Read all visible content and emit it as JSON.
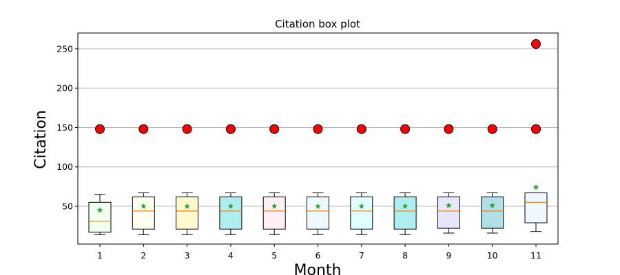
{
  "chart_data": {
    "type": "boxplot",
    "title": "Citation box plot",
    "xlabel": "Month",
    "ylabel": "Citation",
    "ylim": [
      2,
      270
    ],
    "yticks": [
      50,
      100,
      150,
      200,
      250
    ],
    "grid": "y",
    "categories": [
      "1",
      "2",
      "3",
      "4",
      "5",
      "6",
      "7",
      "8",
      "9",
      "10",
      "11"
    ],
    "boxes": [
      {
        "label": "1",
        "whisker_low": 14,
        "q1": 17,
        "median": 31,
        "q3": 55,
        "whisker_high": 65,
        "mean": 45,
        "outliers": [
          148
        ],
        "color": "#f0fff0"
      },
      {
        "label": "2",
        "whisker_low": 14,
        "q1": 21,
        "median": 44,
        "q3": 62,
        "whisker_high": 67,
        "mean": 50,
        "outliers": [
          148
        ],
        "color": "#fffff0"
      },
      {
        "label": "3",
        "whisker_low": 14,
        "q1": 21,
        "median": 44,
        "q3": 62,
        "whisker_high": 67,
        "mean": 50,
        "outliers": [
          148
        ],
        "color": "#fffacd"
      },
      {
        "label": "4",
        "whisker_low": 14,
        "q1": 21,
        "median": 44,
        "q3": 62,
        "whisker_high": 67,
        "mean": 50,
        "outliers": [
          148
        ],
        "color": "#afeeee"
      },
      {
        "label": "5",
        "whisker_low": 14,
        "q1": 21,
        "median": 44,
        "q3": 62,
        "whisker_high": 67,
        "mean": 50,
        "outliers": [
          148
        ],
        "color": "#fff0f5"
      },
      {
        "label": "6",
        "whisker_low": 14,
        "q1": 21,
        "median": 44,
        "q3": 62,
        "whisker_high": 67,
        "mean": 50,
        "outliers": [
          148
        ],
        "color": "#f0f8ff"
      },
      {
        "label": "7",
        "whisker_low": 14,
        "q1": 21,
        "median": 44,
        "q3": 62,
        "whisker_high": 67,
        "mean": 50,
        "outliers": [
          148
        ],
        "color": "#e0ffff"
      },
      {
        "label": "8",
        "whisker_low": 14,
        "q1": 21,
        "median": 44,
        "q3": 62,
        "whisker_high": 67,
        "mean": 50,
        "outliers": [
          148
        ],
        "color": "#afeeee"
      },
      {
        "label": "9",
        "whisker_low": 16,
        "q1": 22,
        "median": 44,
        "q3": 62,
        "whisker_high": 67,
        "mean": 51,
        "outliers": [
          148
        ],
        "color": "#e6e6fa"
      },
      {
        "label": "10",
        "whisker_low": 16,
        "q1": 22,
        "median": 44,
        "q3": 62,
        "whisker_high": 67,
        "mean": 51,
        "outliers": [
          148
        ],
        "color": "#b0e0e6"
      },
      {
        "label": "11",
        "whisker_low": 18,
        "q1": 29,
        "median": 55,
        "q3": 67,
        "whisker_high": 67,
        "mean": 74,
        "outliers": [
          148,
          256
        ],
        "color": "#f0f8ff"
      }
    ],
    "colors": {
      "box_edge": "#000000",
      "median_line": "#ff7f0e",
      "mean_marker": "#2ca02c",
      "outlier_fill": "#ff0000",
      "outlier_edge": "#000000",
      "grid": "#b0b0b0"
    }
  }
}
